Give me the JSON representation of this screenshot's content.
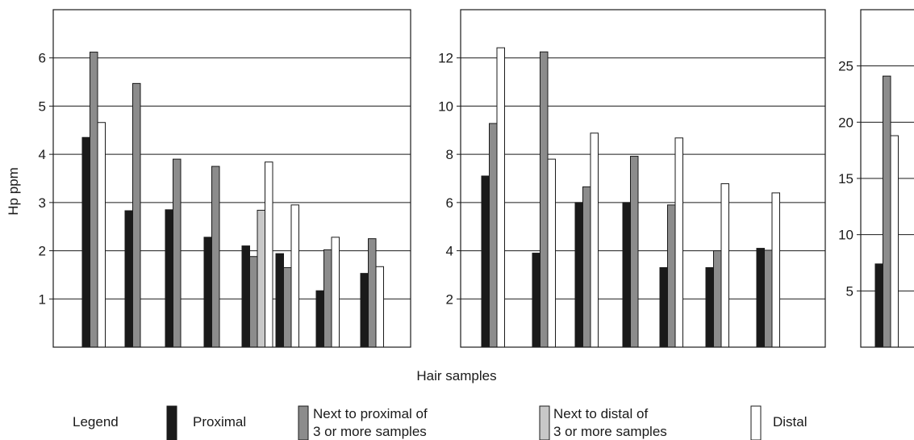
{
  "colors": {
    "proximal": "#1a1a1a",
    "next_to_proximal": "#8c8c8c",
    "next_to_distal": "#c8c8c8",
    "distal": "#ffffff",
    "stroke": "#1a1a1a"
  },
  "chart_data": [
    {
      "type": "bar",
      "ylabel": "Hp ppm",
      "ylim": [
        0,
        7
      ],
      "yticks": [
        1,
        2,
        3,
        4,
        5,
        6
      ],
      "grid": true,
      "series_keys": [
        "proximal",
        "next_to_proximal",
        "next_to_distal",
        "distal"
      ],
      "groups": [
        {
          "proximal": 4.35,
          "next_to_proximal": 6.12,
          "next_to_distal": null,
          "distal": 4.66
        },
        {
          "proximal": 2.83,
          "next_to_proximal": 5.47,
          "next_to_distal": null,
          "distal": null
        },
        {
          "proximal": 2.85,
          "next_to_proximal": 3.9,
          "next_to_distal": null,
          "distal": null
        },
        {
          "proximal": 2.28,
          "next_to_proximal": 3.75,
          "next_to_distal": null,
          "distal": null
        },
        {
          "proximal": 2.1,
          "next_to_proximal": 1.88,
          "next_to_distal": 2.84,
          "distal": 3.84
        },
        {
          "proximal": 1.94,
          "next_to_proximal": 1.65,
          "next_to_distal": null,
          "distal": 2.95
        },
        {
          "proximal": 1.17,
          "next_to_proximal": 2.02,
          "next_to_distal": null,
          "distal": 2.28
        },
        {
          "proximal": 1.53,
          "next_to_proximal": 2.25,
          "next_to_distal": null,
          "distal": 1.67
        }
      ]
    },
    {
      "type": "bar",
      "ylabel": "",
      "ylim": [
        0,
        14
      ],
      "yticks": [
        2,
        4,
        6,
        8,
        10,
        12
      ],
      "grid": true,
      "series_keys": [
        "proximal",
        "next_to_proximal",
        "next_to_distal",
        "distal"
      ],
      "groups": [
        {
          "proximal": 7.1,
          "next_to_proximal": 9.28,
          "next_to_distal": null,
          "distal": 12.42
        },
        {
          "proximal": 3.9,
          "next_to_proximal": 12.25,
          "next_to_distal": null,
          "distal": 7.8
        },
        {
          "proximal": 6.0,
          "next_to_proximal": 6.65,
          "next_to_distal": null,
          "distal": 8.88
        },
        {
          "proximal": 6.0,
          "next_to_proximal": 7.92,
          "next_to_distal": null,
          "distal": null
        },
        {
          "proximal": 3.3,
          "next_to_proximal": 5.9,
          "next_to_distal": null,
          "distal": 8.68
        },
        {
          "proximal": 3.3,
          "next_to_proximal": 4.0,
          "next_to_distal": null,
          "distal": 6.78
        },
        {
          "proximal": 4.1,
          "next_to_proximal": 4.02,
          "next_to_distal": null,
          "distal": 6.4
        }
      ]
    },
    {
      "type": "bar",
      "ylabel": "",
      "ylim": [
        0,
        30
      ],
      "yticks": [
        5,
        10,
        15,
        20,
        25
      ],
      "grid": true,
      "series_keys": [
        "proximal",
        "next_to_proximal",
        "next_to_distal",
        "distal"
      ],
      "groups": [
        {
          "proximal": 7.4,
          "next_to_proximal": 24.1,
          "next_to_distal": null,
          "distal": 18.8
        }
      ]
    }
  ],
  "xlabel": "Hair samples",
  "legend": {
    "title": "Legend",
    "items": [
      {
        "key": "proximal",
        "lines": [
          "Proximal"
        ]
      },
      {
        "key": "next_to_proximal",
        "lines": [
          "Next to proximal of",
          "3 or more samples"
        ]
      },
      {
        "key": "next_to_distal",
        "lines": [
          "Next to distal of",
          "3 or  more samples"
        ]
      },
      {
        "key": "distal",
        "lines": [
          "Distal"
        ]
      }
    ]
  }
}
